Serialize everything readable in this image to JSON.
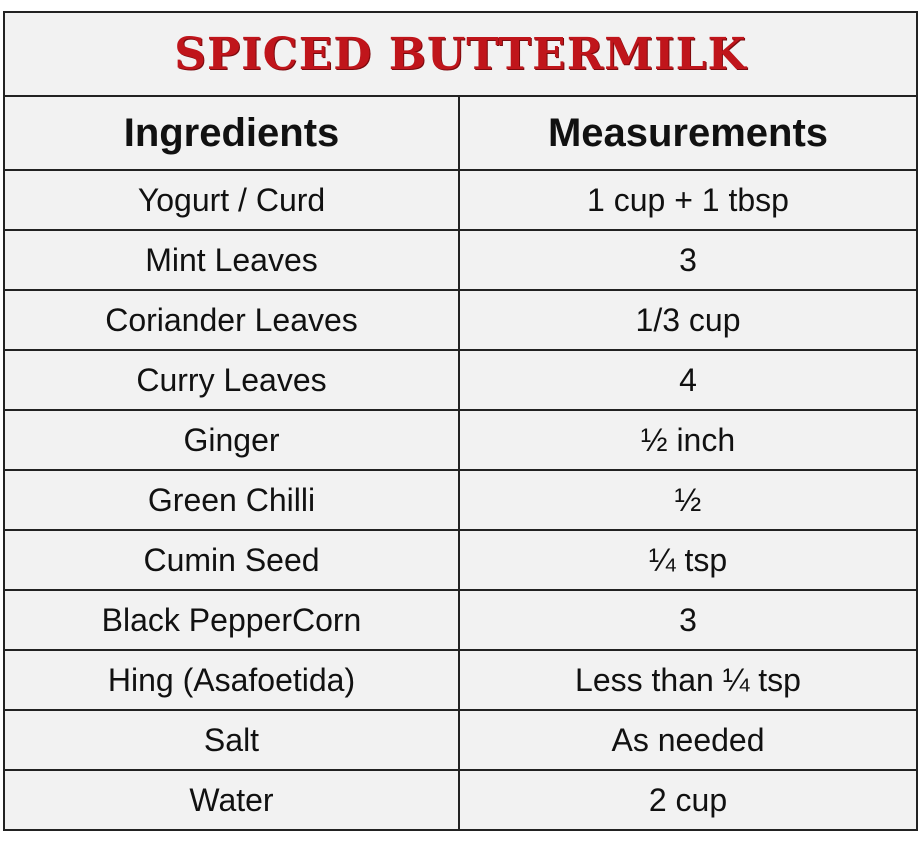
{
  "title": "SPICED BUTTERMILK",
  "colors": {
    "title": "#c0151b",
    "background": "#f2f2f2",
    "border": "#222222",
    "text": "#111111"
  },
  "table": {
    "headers": {
      "ingredients": "Ingredients",
      "measurements": "Measurements"
    },
    "rows": [
      {
        "ingredient": "Yogurt / Curd",
        "measurement": "1 cup + 1 tbsp"
      },
      {
        "ingredient": "Mint Leaves",
        "measurement": "3"
      },
      {
        "ingredient": "Coriander Leaves",
        "measurement": "1/3 cup"
      },
      {
        "ingredient": "Curry Leaves",
        "measurement": "4"
      },
      {
        "ingredient": "Ginger",
        "measurement": "½ inch"
      },
      {
        "ingredient": "Green Chilli",
        "measurement": "½"
      },
      {
        "ingredient": "Cumin Seed",
        "measurement": "¼ tsp"
      },
      {
        "ingredient": "Black PepperCorn",
        "measurement": "3"
      },
      {
        "ingredient": "Hing (Asafoetida)",
        "measurement": "Less than ¼ tsp"
      },
      {
        "ingredient": "Salt",
        "measurement": "As needed"
      },
      {
        "ingredient": "Water",
        "measurement": "2 cup"
      }
    ]
  }
}
